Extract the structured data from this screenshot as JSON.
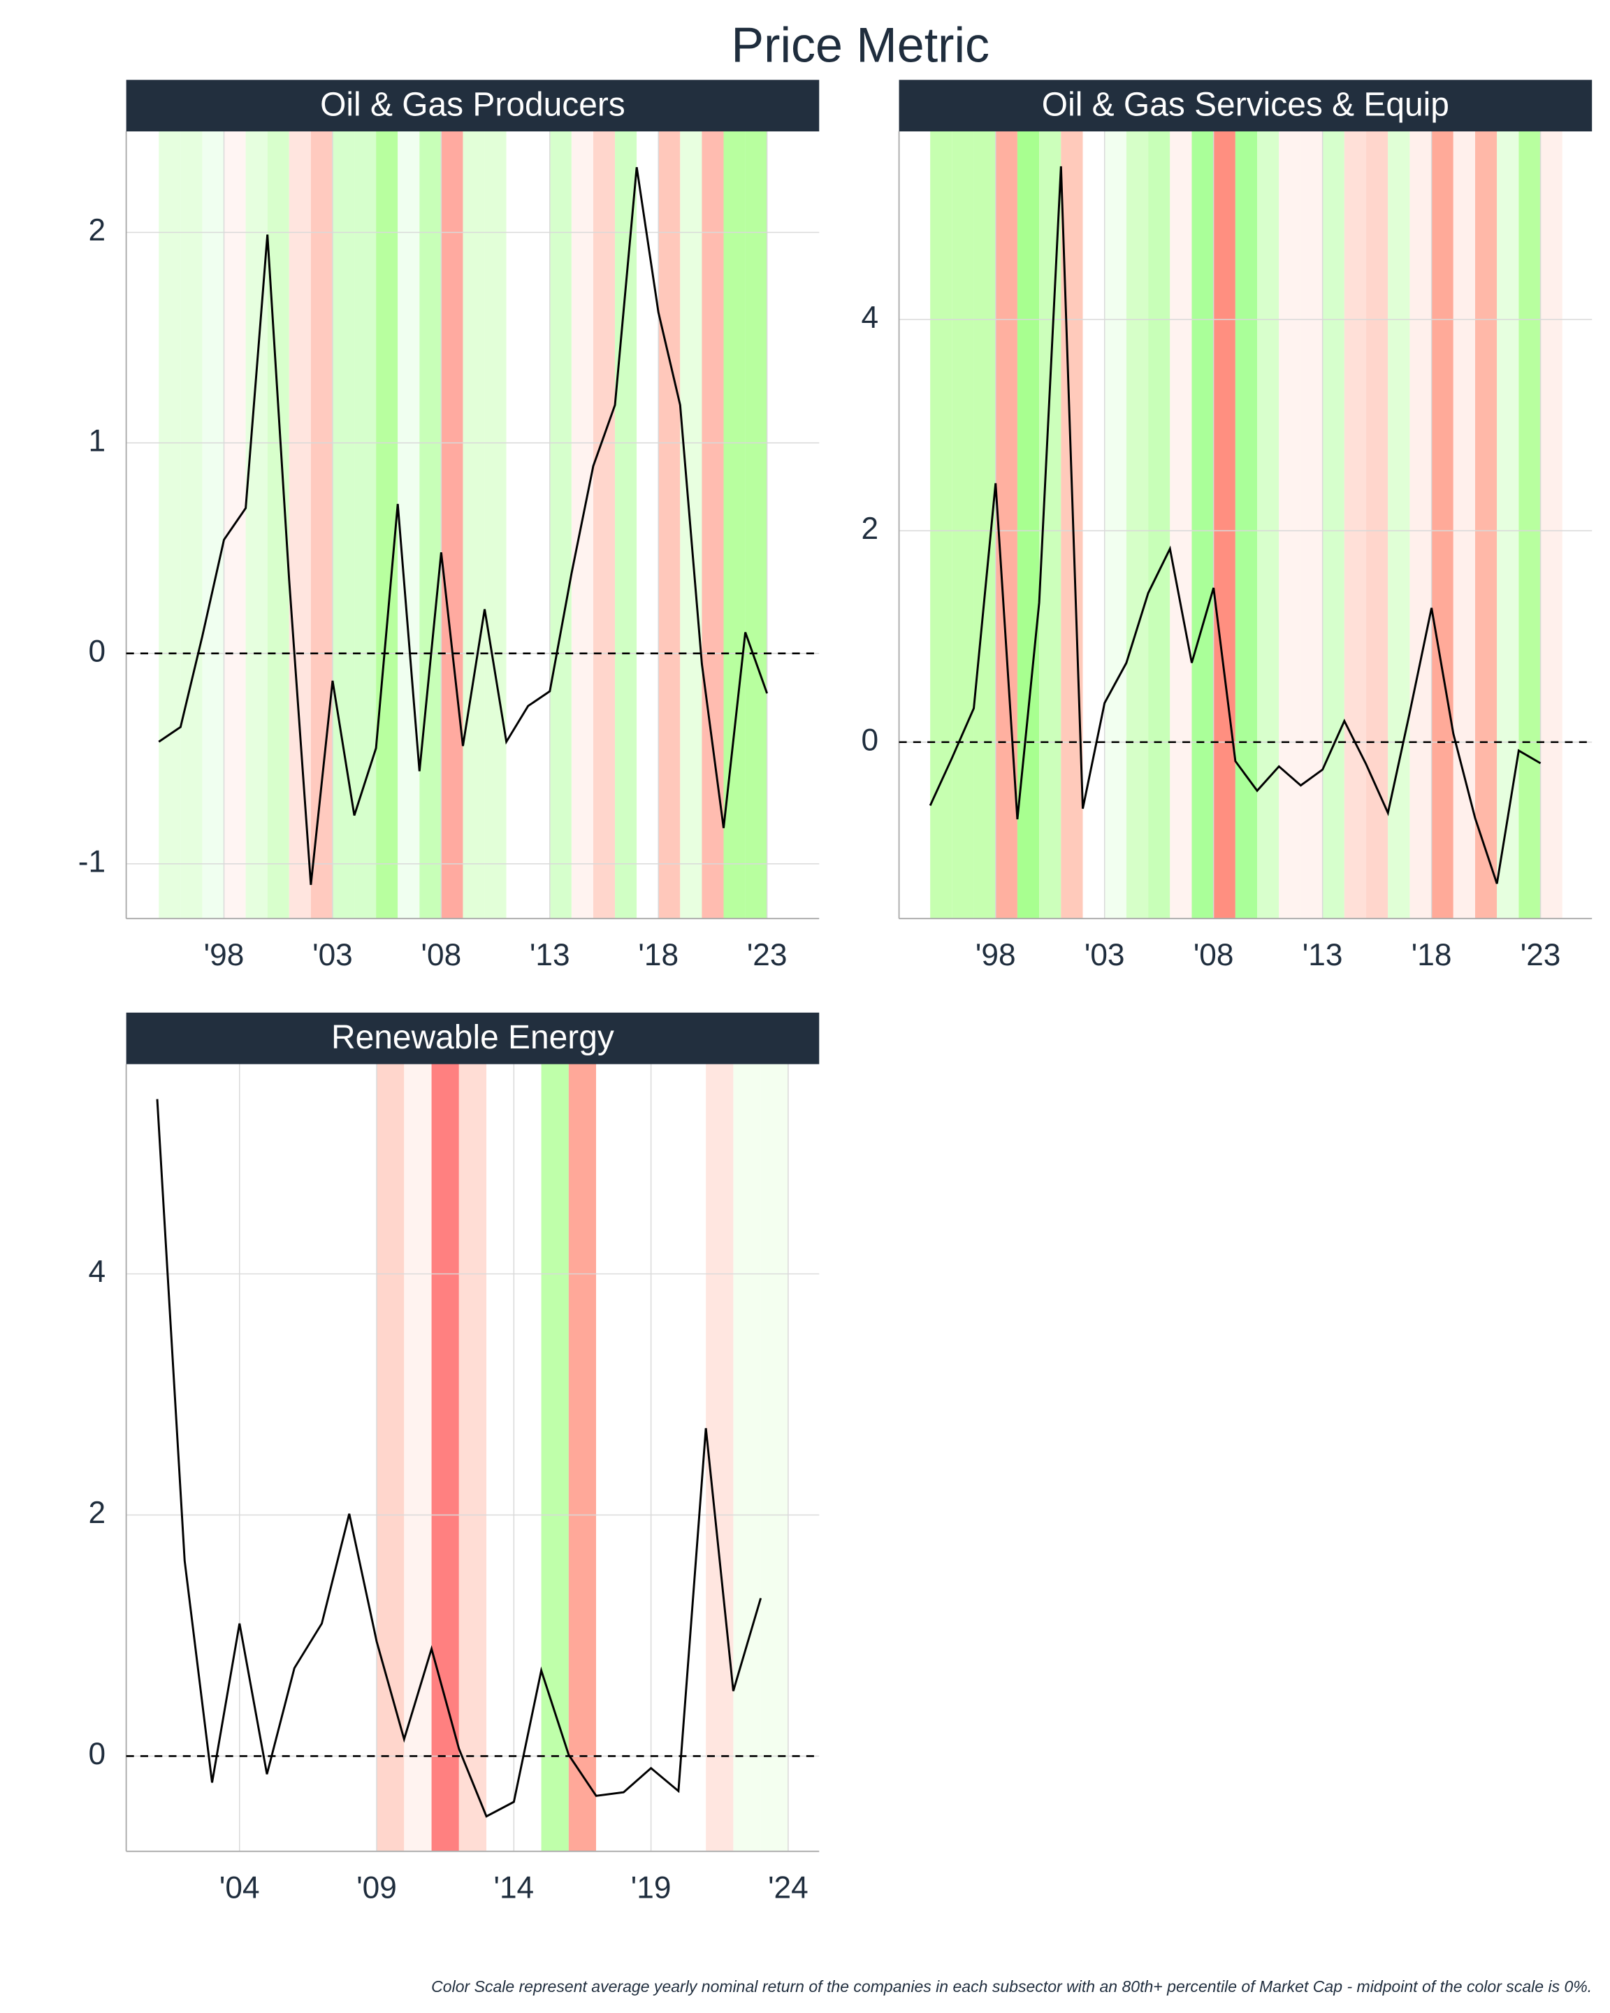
{
  "title": "Price Metric",
  "caption": "Color Scale represent average yearly nominal return of the companies in each subsector with an 80th+ percentile of Market Cap - midpoint of the color scale is 0%.",
  "chart_data": [
    {
      "type": "line",
      "title": "Oil & Gas Producers",
      "color": "#000000",
      "hline": 0,
      "grid": true,
      "x": [
        1995,
        1996,
        1997,
        1998,
        1999,
        2000,
        2001,
        2002,
        2003,
        2004,
        2005,
        2006,
        2007,
        2008,
        2009,
        2010,
        2011,
        2012,
        2013,
        2014,
        2015,
        2016,
        2017,
        2018,
        2019,
        2020,
        2021,
        2022,
        2023
      ],
      "values": [
        -0.42,
        -0.35,
        0.08,
        0.54,
        0.69,
        1.99,
        0.35,
        -1.1,
        -0.13,
        -0.77,
        -0.45,
        0.71,
        -0.56,
        0.48,
        -0.44,
        0.21,
        -0.42,
        -0.25,
        -0.18,
        0.38,
        0.89,
        1.18,
        2.31,
        1.62,
        1.18,
        -0.05,
        -0.83,
        0.1,
        -0.19
      ],
      "band_colors": [
        "#e6ffdf",
        "#e6ffdf",
        "#f0fff0",
        "#fff5f3",
        "#e6ffdf",
        "#d8ffcc",
        "#ffe5df",
        "#ffcabf",
        "#d6ffcc",
        "#d6ffcc",
        "#b8ff9f",
        "#f0fff0",
        "#c8ffb8",
        "#ffaaa0",
        "#e2ffd8",
        "#e2ffd8",
        "#ffffff",
        "#ffffff",
        "#d6ffcc",
        "#fff3f0",
        "#ffd6cc",
        "#d0ffc4",
        "#ffffff",
        "#ffc8bb",
        "#e8ffe0",
        "#ffbcb0",
        "#b8ff9f",
        "#b8ff9f",
        "#ffffff"
      ],
      "xlim": [
        1993.5,
        2025.4
      ],
      "ylim": [
        -1.26,
        2.48
      ],
      "xticks": [
        {
          "value": 1998,
          "label": "'98"
        },
        {
          "value": 2003,
          "label": "'03"
        },
        {
          "value": 2008,
          "label": "'08"
        },
        {
          "value": 2013,
          "label": "'13"
        },
        {
          "value": 2018,
          "label": "'18"
        },
        {
          "value": 2023,
          "label": "'23"
        }
      ],
      "yticks": [
        -1,
        0,
        1,
        2
      ]
    },
    {
      "type": "line",
      "title": "Oil & Gas Services & Equip",
      "color": "#000000",
      "hline": 0,
      "grid": true,
      "x": [
        1995,
        1996,
        1997,
        1998,
        1999,
        2000,
        2001,
        2002,
        2003,
        2004,
        2005,
        2006,
        2007,
        2008,
        2009,
        2010,
        2011,
        2012,
        2013,
        2014,
        2015,
        2016,
        2017,
        2018,
        2019,
        2020,
        2021,
        2022,
        2023
      ],
      "values": [
        -0.6,
        -0.15,
        0.32,
        2.45,
        -0.73,
        1.32,
        5.45,
        -0.63,
        0.37,
        0.75,
        1.41,
        1.83,
        0.75,
        1.46,
        -0.18,
        -0.46,
        -0.23,
        -0.41,
        -0.26,
        0.2,
        -0.21,
        -0.67,
        0.28,
        1.27,
        0.08,
        -0.72,
        -1.34,
        -0.08,
        -0.2
      ],
      "band_colors": [
        "#c6ffb0",
        "#c6ffb0",
        "#c6ffb0",
        "#ffb0a0",
        "#a8ff90",
        "#ccffbb",
        "#ffcabb",
        "#ffffff",
        "#f2fff0",
        "#d6ffc8",
        "#c8ffb8",
        "#fff3f0",
        "#aaff99",
        "#ff8f80",
        "#aaff99",
        "#d8ffcc",
        "#fff3f0",
        "#fff3f0",
        "#d6ffcc",
        "#ffe0d8",
        "#ffd6cc",
        "#e0ffd6",
        "#fff0ec",
        "#ffaa99",
        "#fff0ec",
        "#ffb8a8",
        "#e6ffdf",
        "#b8ff9f",
        "#fff0ec"
      ],
      "xlim": [
        1993.57,
        2025.36
      ],
      "ylim": [
        -1.67,
        5.78
      ],
      "xticks": [
        {
          "value": 1998,
          "label": "'98"
        },
        {
          "value": 2003,
          "label": "'03"
        },
        {
          "value": 2008,
          "label": "'08"
        },
        {
          "value": 2013,
          "label": "'13"
        },
        {
          "value": 2018,
          "label": "'18"
        },
        {
          "value": 2023,
          "label": "'23"
        }
      ],
      "yticks": [
        0,
        2,
        4
      ]
    },
    {
      "type": "line",
      "title": "Renewable Energy",
      "color": "#000000",
      "hline": 0,
      "grid": true,
      "x": [
        2001,
        2002,
        2003,
        2004,
        2005,
        2006,
        2007,
        2008,
        2009,
        2010,
        2011,
        2012,
        2013,
        2014,
        2015,
        2016,
        2017,
        2018,
        2019,
        2020,
        2021,
        2022,
        2023
      ],
      "values": [
        5.45,
        1.62,
        -0.22,
        1.1,
        -0.15,
        0.73,
        1.1,
        2.01,
        0.95,
        0.14,
        0.89,
        0.06,
        -0.5,
        -0.38,
        0.71,
        0.01,
        -0.33,
        -0.3,
        -0.1,
        -0.29,
        2.72,
        0.54,
        1.31
      ],
      "band_colors": [
        "#ffffff",
        "#ffffff",
        "#ffffff",
        "#ffffff",
        "#ffffff",
        "#ffffff",
        "#ffffff",
        "#ffffff",
        "#ffd6cc",
        "#fff3f0",
        "#ff8080",
        "#ffddd5",
        "#ffffff",
        "#ffffff",
        "#bfffaa",
        "#ffa899",
        "#ffffff",
        "#ffffff",
        "#ffffff",
        "#ffffff",
        "#ffe6e0",
        "#f4fff0",
        "#f4fff0"
      ],
      "xlim": [
        1999.87,
        2025.13
      ],
      "ylim": [
        -0.79,
        5.74
      ],
      "xticks": [
        {
          "value": 2004,
          "label": "'04"
        },
        {
          "value": 2009,
          "label": "'09"
        },
        {
          "value": 2014,
          "label": "'14"
        },
        {
          "value": 2019,
          "label": "'19"
        },
        {
          "value": 2024,
          "label": "'24"
        }
      ],
      "yticks": [
        0,
        2,
        4
      ]
    }
  ]
}
